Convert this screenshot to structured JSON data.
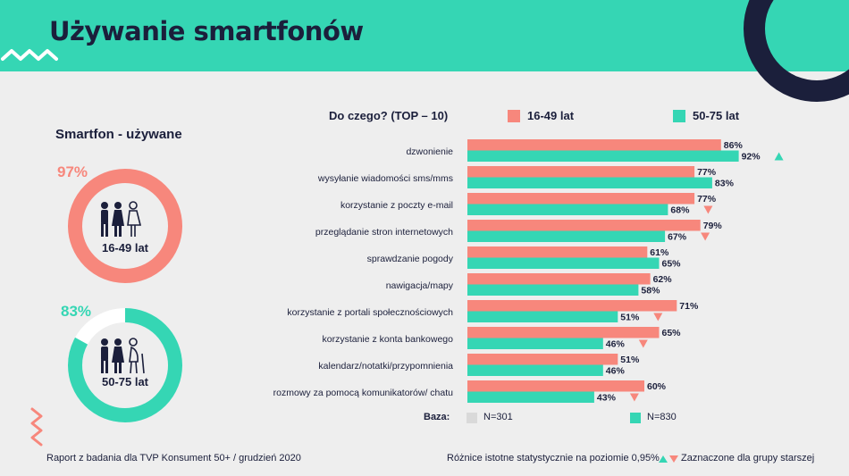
{
  "header": {
    "title": "Używanie smartfonów"
  },
  "left": {
    "subtitle": "Smartfon - używane",
    "groups": [
      {
        "pct_label": "97%",
        "pct": 0.97,
        "label": "16-49 lat",
        "color": "#f7877c"
      },
      {
        "pct_label": "83%",
        "pct": 0.83,
        "label": "50-75 lat",
        "color": "#35d6b4"
      }
    ]
  },
  "legend": {
    "heading": "Do czego? (TOP – 10)",
    "items": [
      {
        "label": "16-49 lat",
        "color": "#f7877c"
      },
      {
        "label": "50-75 lat",
        "color": "#35d6b4"
      }
    ]
  },
  "baza": {
    "label": "Baza:",
    "items": [
      {
        "label": "N=301",
        "color": "#d9d9d9"
      },
      {
        "label": "N=830",
        "color": "#35d6b4"
      }
    ]
  },
  "chart_data": {
    "type": "bar",
    "orientation": "horizontal",
    "categories": [
      "dzwonienie",
      "wysyłanie wiadomości sms/mms",
      "korzystanie z poczty e-mail",
      "przeglądanie stron internetowych",
      "sprawdzanie pogody",
      "nawigacja/mapy",
      "korzystanie z portali społecznościowych",
      "korzystanie z konta bankowego",
      "kalendarz/notatki/przypomnienia",
      "rozmowy za pomocą komunikatorów/ chatu"
    ],
    "series": [
      {
        "name": "16-49 lat",
        "color": "#f7877c",
        "values": [
          86,
          77,
          77,
          79,
          61,
          62,
          71,
          65,
          51,
          60
        ],
        "labels": [
          "86%",
          "77%",
          "77%",
          "79%",
          "61%",
          "62%",
          "71%",
          "65%",
          "51%",
          "60%"
        ]
      },
      {
        "name": "50-75 lat",
        "color": "#35d6b4",
        "values": [
          92,
          83,
          68,
          67,
          65,
          58,
          51,
          46,
          46,
          43
        ],
        "labels": [
          "92%",
          "83%",
          "68%",
          "67%",
          "65%",
          "58%",
          "51%",
          "46%",
          "46%",
          "43%"
        ],
        "significance": [
          "up",
          "",
          "down",
          "down",
          "",
          "",
          "down",
          "down",
          "",
          "down"
        ]
      }
    ],
    "xlim": [
      0,
      100
    ],
    "significance_colors": {
      "up": "#35d6b4",
      "down": "#f7877c"
    }
  },
  "footer": {
    "source": "Raport z badania dla TVP Konsument 50+ / grudzień 2020",
    "significance_note": "Różnice istotne statystycznie na poziomie 0,95%",
    "marked_note": "Zaznaczone dla grupy starszej"
  }
}
